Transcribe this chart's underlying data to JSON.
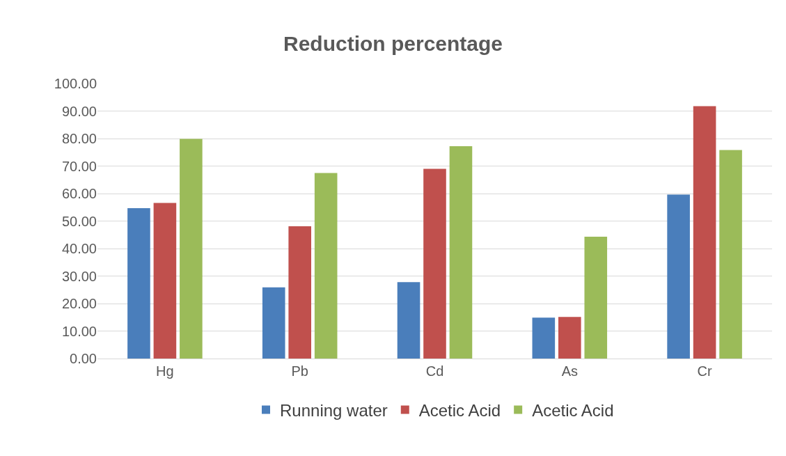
{
  "chart_data": {
    "type": "bar",
    "title": "Reduction percentage",
    "categories": [
      "Hg",
      "Pb",
      "Cd",
      "As",
      "Cr"
    ],
    "series": [
      {
        "name": "Running water",
        "color": "#4a7ebb",
        "values": [
          54.7,
          25.9,
          27.8,
          14.9,
          59.6
        ]
      },
      {
        "name": "Acetic Acid",
        "color": "#c0504d",
        "values": [
          56.6,
          48.1,
          69.0,
          15.1,
          91.8
        ]
      },
      {
        "name": "Acetic Acid",
        "color": "#9bbb59",
        "values": [
          79.9,
          67.5,
          77.2,
          44.3,
          75.8
        ]
      }
    ],
    "ylim": [
      0,
      100
    ],
    "yticks": [
      {
        "value": 0,
        "label": "0.00"
      },
      {
        "value": 10,
        "label": "10.00"
      },
      {
        "value": 20,
        "label": "20.00"
      },
      {
        "value": 30,
        "label": "30.00"
      },
      {
        "value": 40,
        "label": "40.00"
      },
      {
        "value": 50,
        "label": "50.00"
      },
      {
        "value": 60,
        "label": "60.00"
      },
      {
        "value": 70,
        "label": "70.00"
      },
      {
        "value": 80,
        "label": "80.00"
      },
      {
        "value": 90,
        "label": "90.00"
      },
      {
        "value": 100,
        "label": "100.00"
      }
    ],
    "grid": "y",
    "legend": "bottom"
  }
}
